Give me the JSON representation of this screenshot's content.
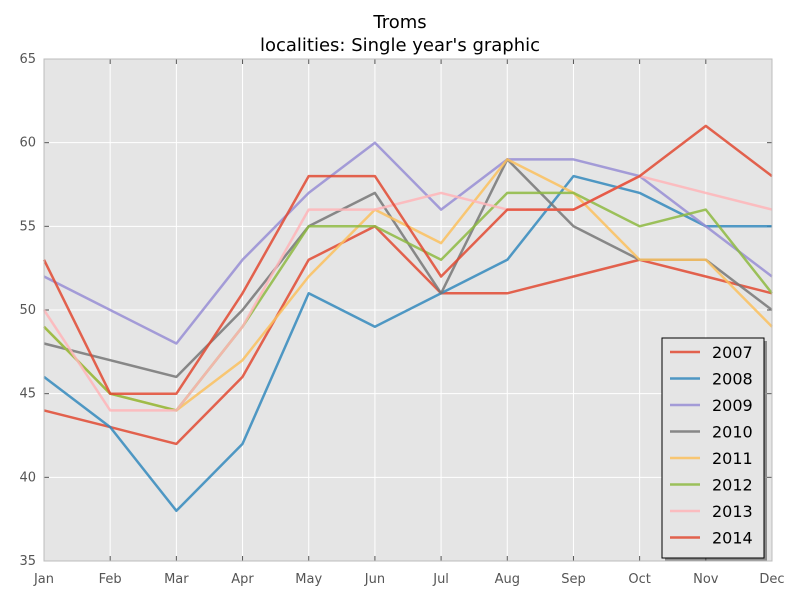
{
  "chart_data": {
    "type": "line",
    "title": "Troms",
    "subtitle": "localities: Single year's graphic",
    "xlabel": "",
    "ylabel": "",
    "categories": [
      "Jan",
      "Feb",
      "Mar",
      "Apr",
      "May",
      "Jun",
      "Jul",
      "Aug",
      "Sep",
      "Oct",
      "Nov",
      "Dec"
    ],
    "ylim": [
      35,
      65
    ],
    "yticks": [
      35,
      40,
      45,
      50,
      55,
      60,
      65
    ],
    "grid": true,
    "legend_position": "bottom-right",
    "background": "#e5e5e5",
    "series": [
      {
        "name": "2007",
        "color": "#e24a33",
        "values": [
          44,
          43,
          42,
          46,
          53,
          55,
          51,
          51,
          52,
          53,
          52,
          51
        ]
      },
      {
        "name": "2008",
        "color": "#348abd",
        "values": [
          46,
          43,
          38,
          42,
          51,
          49,
          51,
          53,
          58,
          57,
          55,
          55
        ]
      },
      {
        "name": "2009",
        "color": "#988ed5",
        "values": [
          52,
          50,
          48,
          53,
          57,
          60,
          56,
          59,
          59,
          58,
          55,
          52
        ]
      },
      {
        "name": "2010",
        "color": "#777777",
        "values": [
          48,
          47,
          46,
          50,
          55,
          57,
          51,
          59,
          55,
          53,
          53,
          50
        ]
      },
      {
        "name": "2011",
        "color": "#fbc15e",
        "values": [
          49,
          45,
          44,
          47,
          52,
          56,
          54,
          59,
          57,
          53,
          53,
          49
        ]
      },
      {
        "name": "2012",
        "color": "#8eba42",
        "values": [
          49,
          45,
          44,
          49,
          55,
          55,
          53,
          57,
          57,
          55,
          56,
          51
        ]
      },
      {
        "name": "2013",
        "color": "#ffb5b8",
        "values": [
          50,
          44,
          44,
          49,
          56,
          56,
          57,
          56,
          56,
          58,
          57,
          56
        ]
      },
      {
        "name": "2014",
        "color": "#e24a33",
        "values": [
          53,
          45,
          45,
          51,
          58,
          58,
          52,
          56,
          56,
          58,
          61,
          58
        ]
      }
    ]
  }
}
